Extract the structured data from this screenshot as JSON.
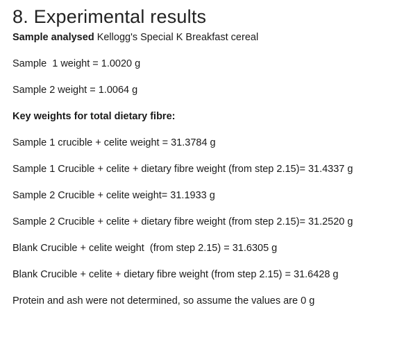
{
  "section": {
    "title": "8. Experimental results"
  },
  "sample_line": {
    "label": "Sample analysed",
    "value": " Kellogg's Special K Breakfast cereal"
  },
  "lines": [
    "Sample  1 weight = 1.0020 g",
    "Sample 2 weight = 1.0064 g"
  ],
  "key_weights_heading": "Key weights for total dietary fibre:",
  "weights": [
    "Sample 1 crucible + celite weight = 31.3784 g",
    "Sample 1 Crucible + celite + dietary fibre weight (from step 2.15)= 31.4337 g",
    "Sample 2 Crucible + celite weight= 31.1933 g",
    "Sample 2 Crucible + celite + dietary fibre weight (from step 2.15)= 31.2520 g",
    "Blank Crucible + celite weight  (from step 2.15) = 31.6305 g",
    "Blank Crucible + celite + dietary fibre weight (from step 2.15) = 31.6428 g",
    "Protein and ash were not determined, so assume the values are 0 g"
  ]
}
